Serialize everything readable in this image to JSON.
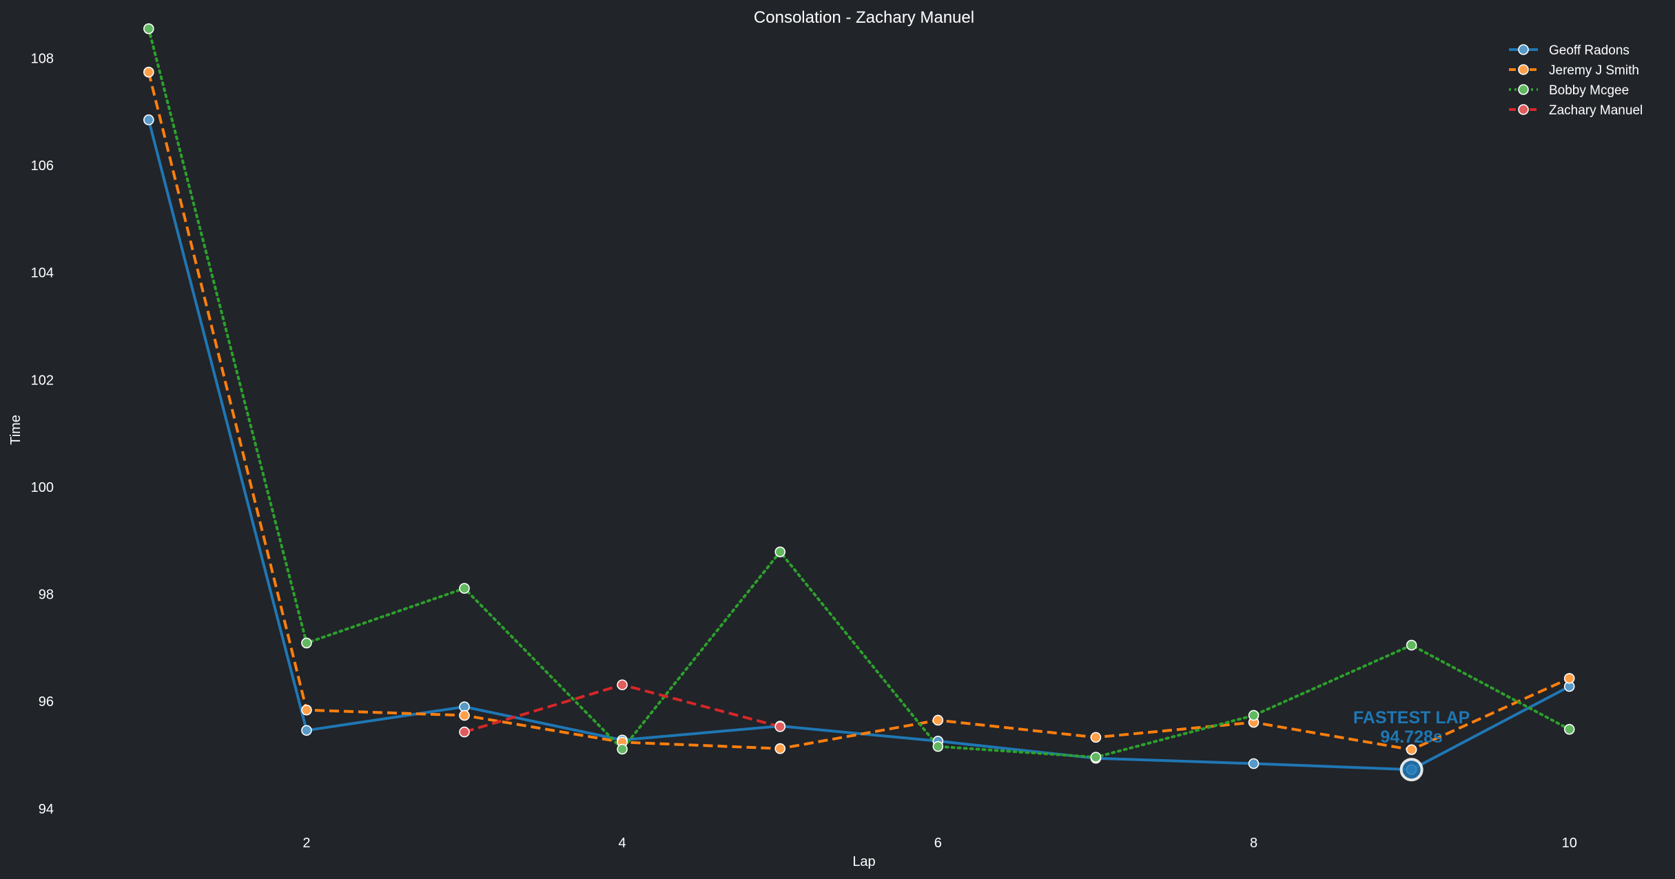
{
  "chart_data": {
    "type": "line",
    "title": "Consolation - Zachary Manuel",
    "xlabel": "Lap",
    "ylabel": "Time",
    "xlim": [
      0.8,
      10.25
    ],
    "ylim": [
      93.6,
      108.7
    ],
    "x_ticks": [
      2,
      4,
      6,
      8,
      10
    ],
    "y_ticks": [
      94,
      96,
      98,
      100,
      102,
      104,
      106,
      108
    ],
    "grid": false,
    "legend_position": "top-right",
    "series": [
      {
        "name": "Geoff Radons",
        "color": "#1f77b4",
        "dash": "solid",
        "x": [
          1,
          2,
          3,
          4,
          5,
          6,
          7,
          8,
          9,
          10
        ],
        "values": [
          106.85,
          95.46,
          95.9,
          95.28,
          95.54,
          95.26,
          94.94,
          94.84,
          94.728,
          96.28
        ]
      },
      {
        "name": "Jeremy J Smith",
        "color": "#ff7f0e",
        "dash": "dashed",
        "x": [
          1,
          2,
          3,
          4,
          5,
          6,
          7,
          8,
          9,
          10
        ],
        "values": [
          107.74,
          95.84,
          95.74,
          95.24,
          95.12,
          95.65,
          95.33,
          95.61,
          95.1,
          96.43
        ]
      },
      {
        "name": "Bobby Mcgee",
        "color": "#2ca02c",
        "dash": "dotted",
        "x": [
          1,
          2,
          3,
          4,
          5,
          6,
          7,
          8,
          9,
          10
        ],
        "values": [
          108.55,
          97.09,
          98.11,
          95.11,
          98.79,
          95.16,
          94.96,
          95.74,
          97.05,
          95.48
        ]
      },
      {
        "name": "Zachary Manuel",
        "color": "#d62728",
        "dash": "dashed",
        "x": [
          3,
          4,
          5
        ],
        "values": [
          95.43,
          96.31,
          95.53
        ]
      }
    ],
    "annotation": {
      "label_line1": "FASTEST LAP",
      "label_line2": "94.728s",
      "x": 9,
      "y": 94.728,
      "color": "#1f77b4"
    }
  }
}
